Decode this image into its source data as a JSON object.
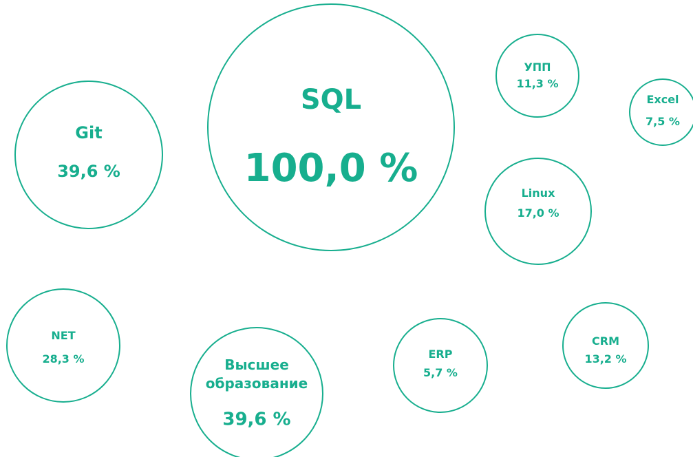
{
  "chart_data": {
    "type": "bubble",
    "color": "#17ae8e",
    "categories": [
      "SQL",
      "Git",
      "УПП",
      "Excel",
      "Linux",
      "NET",
      "Высшее образование",
      "ERP",
      "CRM"
    ],
    "values": [
      100.0,
      39.6,
      11.3,
      7.5,
      17.0,
      28.3,
      39.6,
      5.7,
      13.2
    ],
    "value_labels": [
      "100,0 %",
      "39,6 %",
      "11,3 %",
      "7,5 %",
      "17,0 %",
      "28,3 %",
      "39,6 %",
      "5,7 %",
      "13,2 %"
    ]
  }
}
